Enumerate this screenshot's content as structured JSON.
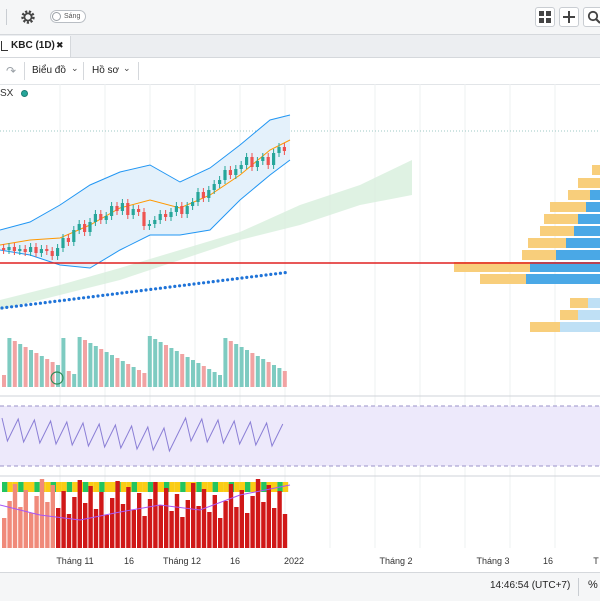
{
  "topbar": {
    "theme_toggle_label": "Sáng",
    "colors": {
      "bg": "#f5f6f7",
      "icon": "#444444"
    }
  },
  "tab": {
    "label": "KBC (1D)",
    "close_glyph": "✖"
  },
  "toolbar": {
    "chart_menu_label": "Biểu đồ",
    "profile_menu_label": "Hồ sơ",
    "indicator_fragment": "SX"
  },
  "xaxis": {
    "labels": [
      "Tháng 11",
      "16",
      "Tháng 12",
      "16",
      "2022",
      "Tháng 2",
      "Tháng 3",
      "16",
      "T"
    ]
  },
  "status": {
    "time": "14:46:54 (UTC+7)",
    "percent_symbol": "%"
  },
  "colors": {
    "up": "#26a69a",
    "down": "#ef5350",
    "bb": "#2196f3",
    "ma": "#ff9800",
    "vol_up": "#7ecbc1",
    "vol_down": "#f1a3a3",
    "rsi_bg": "#ede9fb",
    "rsi_line": "#8b7fd6",
    "profile_yellow": "#f7c96d",
    "profile_blue": "#4aa8e6",
    "support": "#e02020",
    "sar": "#1e73d8"
  }
}
